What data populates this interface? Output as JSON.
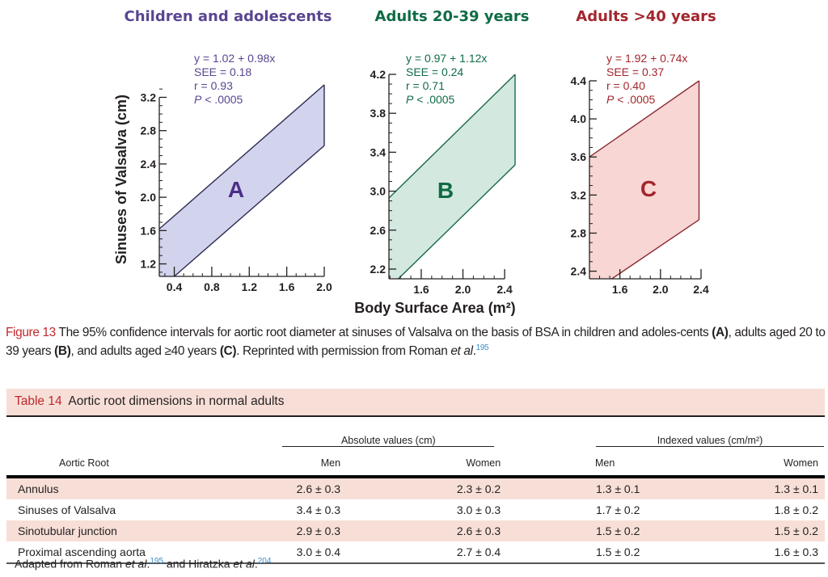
{
  "figure": {
    "panels": [
      {
        "id": "A",
        "title": "Children and adolescents",
        "color": "#5a4590",
        "stroke": "#2f2a55",
        "fill": "#d2d3ec",
        "letter_color": "#4a2e88",
        "stats": [
          "y = 1.02 + 0.98x",
          "SEE = 0.18",
          "r = 0.93",
          "P < .0005"
        ],
        "y_ticks": [
          "1.2",
          "1.6",
          "2.0",
          "2.4",
          "2.8",
          "3.2"
        ],
        "x_ticks": [
          "0.4",
          "0.8",
          "1.2",
          "1.6",
          "2.0"
        ],
        "letter": "A"
      },
      {
        "id": "B",
        "title": "Adults 20-39 years",
        "color": "#0f6b45",
        "stroke": "#1a6a4a",
        "fill": "#d3e8de",
        "letter_color": "#0f6b45",
        "stats": [
          "y = 0.97 + 1.12x",
          "SEE = 0.24",
          "r = 0.71",
          "P < .0005"
        ],
        "y_ticks": [
          "2.2",
          "2.6",
          "3.0",
          "3.4",
          "3.8",
          "4.2"
        ],
        "x_ticks": [
          "1.6",
          "2.0",
          "2.4"
        ],
        "letter": "B"
      },
      {
        "id": "C",
        "title": "Adults >40 years",
        "color": "#a3262d",
        "stroke": "#8a2a33",
        "fill": "#f8d6d4",
        "letter_color": "#a3262d",
        "stats": [
          "y = 1.92 + 0.74x",
          "SEE = 0.37",
          "r = 0.40",
          "P < .0005"
        ],
        "y_ticks": [
          "2.4",
          "2.8",
          "3.2",
          "3.6",
          "4.0",
          "4.4"
        ],
        "x_ticks": [
          "1.6",
          "2.0",
          "2.4"
        ],
        "letter": "C"
      }
    ],
    "y_axis_title": "Sinuses of Valsalva (cm)",
    "x_axis_title": "Body Surface Area (m²)"
  },
  "chart_data": [
    {
      "type": "area",
      "title": "Children and adolescents",
      "xlabel": "Body Surface Area (m²)",
      "ylabel": "Sinuses of Valsalva (cm)",
      "xlim": [
        0.24,
        2.0
      ],
      "ylim": [
        1.05,
        3.35
      ],
      "x_ticks": [
        0.4,
        0.8,
        1.2,
        1.6,
        2.0
      ],
      "y_ticks": [
        1.2,
        1.6,
        2.0,
        2.4,
        2.8,
        3.2
      ],
      "annotation": [
        "y = 1.02 + 0.98x",
        "SEE = 0.18",
        "r = 0.93",
        "P < .0005"
      ],
      "label": "A",
      "series": [
        {
          "name": "95% CI upper",
          "x": [
            0.24,
            2.0
          ],
          "y": [
            1.62,
            3.35
          ]
        },
        {
          "name": "95% CI lower",
          "x": [
            0.4,
            2.0
          ],
          "y": [
            1.05,
            2.62
          ]
        }
      ]
    },
    {
      "type": "area",
      "title": "Adults 20-39 years",
      "xlabel": "Body Surface Area (m²)",
      "ylabel": "Sinuses of Valsalva (cm)",
      "xlim": [
        1.29,
        2.5
      ],
      "ylim": [
        2.1,
        4.2
      ],
      "x_ticks": [
        1.6,
        2.0,
        2.4
      ],
      "y_ticks": [
        2.2,
        2.6,
        3.0,
        3.4,
        3.8,
        4.2
      ],
      "annotation": [
        "y = 0.97 + 1.12x",
        "SEE = 0.24",
        "r = 0.71",
        "P < .0005"
      ],
      "label": "B",
      "series": [
        {
          "name": "95% CI upper",
          "x": [
            1.29,
            2.5
          ],
          "y": [
            2.93,
            4.2
          ]
        },
        {
          "name": "95% CI lower",
          "x": [
            1.38,
            2.5
          ],
          "y": [
            2.1,
            3.27
          ]
        }
      ]
    },
    {
      "type": "area",
      "title": "Adults >40 years",
      "xlabel": "Body Surface Area (m²)",
      "ylabel": "Sinuses of Valsalva (cm)",
      "xlim": [
        1.3,
        2.4
      ],
      "ylim": [
        2.32,
        4.4
      ],
      "x_ticks": [
        1.6,
        2.0,
        2.4
      ],
      "y_ticks": [
        2.4,
        2.8,
        3.2,
        3.6,
        4.0,
        4.4
      ],
      "annotation": [
        "y = 1.92 + 0.74x",
        "SEE = 0.37",
        "r = 0.40",
        "P < .0005"
      ],
      "label": "C",
      "series": [
        {
          "name": "95% CI upper",
          "x": [
            1.3,
            2.38
          ],
          "y": [
            3.6,
            4.4
          ]
        },
        {
          "name": "95% CI lower",
          "x": [
            1.52,
            2.38
          ],
          "y": [
            2.32,
            2.94
          ]
        }
      ]
    }
  ],
  "caption": {
    "label": "Figure 13",
    "text_1": " The 95% confidence intervals for aortic root diameter at sinuses of Valsalva on the basis of BSA in children and adoles-cents ",
    "a": "(A)",
    "text_2": ", adults aged 20 to 39 years ",
    "b": "(B)",
    "text_3": ", and adults aged ≥40 years ",
    "c": "(C)",
    "text_4": ". Reprinted with permission from Roman ",
    "etal": "et al",
    "period": ".",
    "ref": "195"
  },
  "table": {
    "label": "Table 14",
    "title": "Aortic root dimensions in normal adults",
    "group_headers": [
      "Absolute values (cm)",
      "Indexed values (cm/m²)"
    ],
    "row_header": "Aortic Root",
    "columns": [
      "Men",
      "Women",
      "Men",
      "Women"
    ],
    "rows": [
      {
        "name": "Annulus",
        "values": [
          "2.6 ± 0.3",
          "2.3 ± 0.2",
          "1.3 ± 0.1",
          "1.3 ± 0.1"
        ]
      },
      {
        "name": "Sinuses of Valsalva",
        "values": [
          "3.4 ± 0.3",
          "3.0 ± 0.3",
          "1.7 ± 0.2",
          "1.8 ± 0.2"
        ]
      },
      {
        "name": "Sinotubular junction",
        "values": [
          "2.9 ± 0.3",
          "2.6 ± 0.3",
          "1.5 ± 0.2",
          "1.5 ± 0.2"
        ]
      },
      {
        "name": "Proximal ascending aorta",
        "values": [
          "3.0 ± 0.4",
          "2.7 ± 0.4",
          "1.5 ± 0.2",
          "1.6 ± 0.3"
        ]
      }
    ],
    "footnote": {
      "t1": "Adapted from Roman ",
      "etal1": "et al",
      "t2": ".",
      "ref1": "195",
      "t3": " and Hiratzka ",
      "etal2": "et al",
      "t4": ".",
      "ref2": "204"
    }
  }
}
